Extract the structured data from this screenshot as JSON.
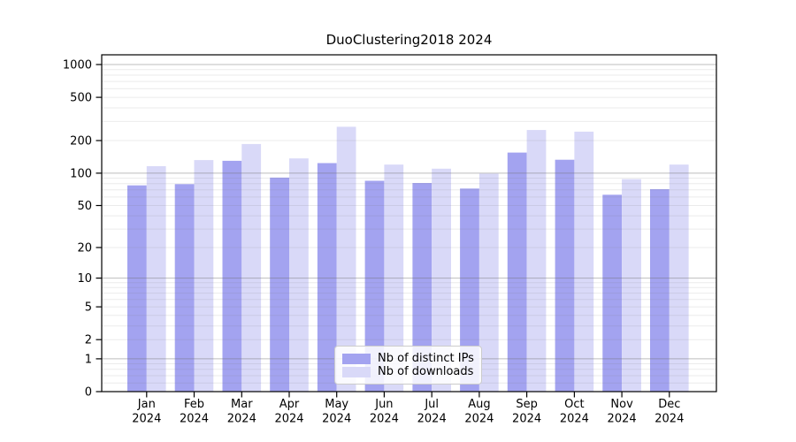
{
  "title": "DuoClustering2018 2024",
  "chart_data": {
    "type": "bar",
    "title": "DuoClustering2018 2024",
    "categories": [
      "Jan 2024",
      "Feb 2024",
      "Mar 2024",
      "Apr 2024",
      "May 2024",
      "Jun 2024",
      "Jul 2024",
      "Aug 2024",
      "Sep 2024",
      "Oct 2024",
      "Nov 2024",
      "Dec 2024"
    ],
    "series": [
      {
        "name": "Nb of distinct IPs",
        "color": "#a3a3f0",
        "values": [
          77,
          79,
          130,
          91,
          124,
          85,
          81,
          72,
          155,
          133,
          63,
          71
        ]
      },
      {
        "name": "Nb of downloads",
        "color": "#d9d9f8",
        "values": [
          116,
          132,
          186,
          137,
          268,
          120,
          110,
          99,
          250,
          242,
          88,
          120
        ]
      }
    ],
    "ylabel": "",
    "xlabel": "",
    "y_scale": "log(1+x)",
    "y_ticks": [
      0,
      1,
      2,
      5,
      10,
      20,
      50,
      100,
      200,
      500,
      1000
    ],
    "ylim": [
      0,
      1400
    ],
    "grid": "major and minor horizontal gridlines",
    "legend_position": "lower center"
  },
  "colors": {
    "major_grid": "#b4b4b4",
    "minor_grid": "#e9e9e9",
    "spine": "#000000",
    "text": "#000000"
  }
}
